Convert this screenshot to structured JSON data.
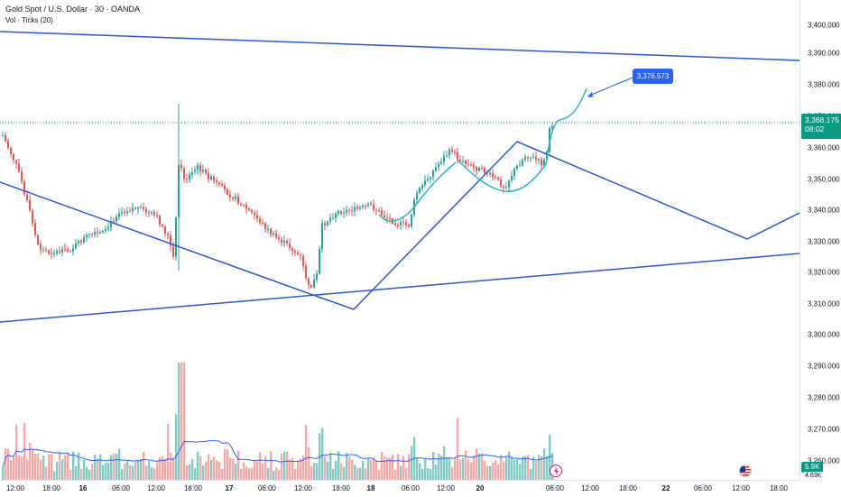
{
  "header": {
    "title": "Gold Spot / U.S. Dollar · 30 · OANDA",
    "volume_indicator": "Vol · Ticks (20)"
  },
  "price_axis": {
    "labels": [
      "3,400.000",
      "3,390.000",
      "3,380.000",
      "3,370.000",
      "3,360.000",
      "3,350.000",
      "3,340.000",
      "3,330.000",
      "3,320.000",
      "3,310.000",
      "3,300.000",
      "3,290.000",
      "3,280.000",
      "3,270.000",
      "3,260.000"
    ]
  },
  "time_axis": {
    "labels": [
      {
        "text": "12:00",
        "bold": false
      },
      {
        "text": "18:00",
        "bold": false
      },
      {
        "text": "16",
        "bold": true
      },
      {
        "text": "06:00",
        "bold": false
      },
      {
        "text": "12:00",
        "bold": false
      },
      {
        "text": "18:00",
        "bold": false
      },
      {
        "text": "17",
        "bold": true
      },
      {
        "text": "06:00",
        "bold": false
      },
      {
        "text": "12:00",
        "bold": false
      },
      {
        "text": "18:00",
        "bold": false
      },
      {
        "text": "18",
        "bold": true
      },
      {
        "text": "06:00",
        "bold": false
      },
      {
        "text": "12:00",
        "bold": false
      },
      {
        "text": "20",
        "bold": true
      },
      {
        "text": "06:00",
        "bold": false
      },
      {
        "text": "12:00",
        "bold": false
      },
      {
        "text": "18:00",
        "bold": false
      },
      {
        "text": "22",
        "bold": true
      },
      {
        "text": "06:00",
        "bold": false
      },
      {
        "text": "12:00",
        "bold": false
      },
      {
        "text": "18:00",
        "bold": false
      }
    ]
  },
  "current_price": {
    "price": "3,368.175",
    "countdown": "08:02"
  },
  "volume_tag": {
    "value": "5.9K",
    "secondary": "4.63K"
  },
  "annotation": {
    "text": "3,376.573"
  },
  "colors": {
    "up": "#26a69a",
    "down": "#ef5350",
    "up_vol": "#80cbc4",
    "down_vol": "#f7a9a8",
    "trendline": "#2b58d6",
    "projection": "#2ab7c9",
    "price_line": "#089981",
    "vol_ma": "#2962ff"
  },
  "icons": {
    "lightning": "lightning-icon",
    "flag": "us-flag-icon"
  }
}
